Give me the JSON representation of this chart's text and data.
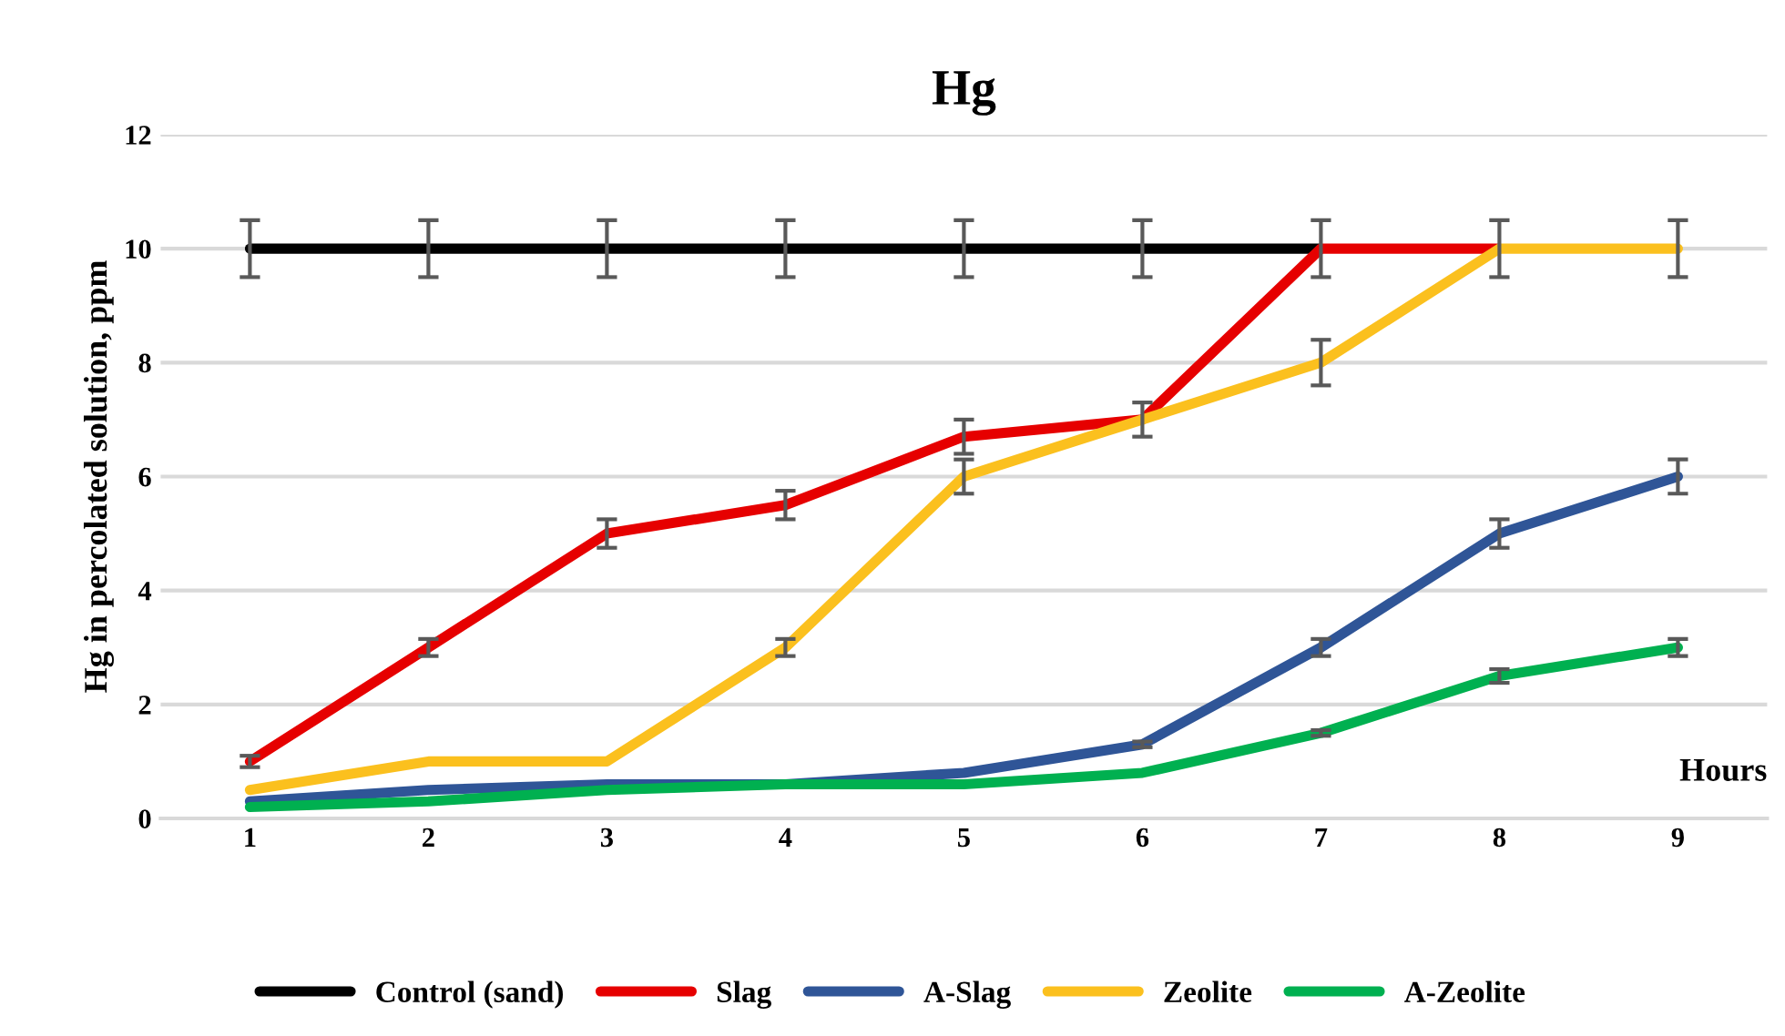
{
  "chart_data": {
    "type": "line",
    "title": "Hg",
    "xlabel": "Hours",
    "ylabel": "Hg in percolated solution, ppm",
    "categories": [
      "1",
      "2",
      "3",
      "4",
      "5",
      "6",
      "7",
      "8",
      "9"
    ],
    "series": [
      {
        "name": "Control (sand)",
        "color": "#000000",
        "values": [
          10,
          10,
          10,
          10,
          10,
          10,
          10,
          null,
          null
        ],
        "errors": [
          0.5,
          0.5,
          0.5,
          0.5,
          0.5,
          0.5,
          0.5,
          null,
          null
        ]
      },
      {
        "name": "Slag",
        "color": "#e60000",
        "values": [
          1,
          3,
          5,
          5.5,
          6.7,
          7,
          10,
          10,
          null
        ],
        "errors": [
          0.1,
          0.15,
          0.25,
          0.25,
          0.3,
          0.3,
          null,
          null,
          null
        ]
      },
      {
        "name": "A-Slag",
        "color": "#2f5597",
        "values": [
          0.3,
          0.5,
          0.6,
          0.6,
          0.8,
          1.3,
          3,
          5,
          6
        ],
        "errors": [
          null,
          null,
          null,
          null,
          null,
          0.05,
          0.15,
          0.25,
          0.3
        ]
      },
      {
        "name": "Zeolite",
        "color": "#fbc01e",
        "values": [
          0.5,
          1,
          1,
          3,
          6,
          7,
          8,
          10,
          10
        ],
        "errors": [
          null,
          null,
          null,
          0.15,
          0.3,
          null,
          0.4,
          0.5,
          0.5
        ]
      },
      {
        "name": "A-Zeolite",
        "color": "#00b050",
        "values": [
          0.2,
          0.3,
          0.5,
          0.6,
          0.6,
          0.8,
          1.5,
          2.5,
          3
        ],
        "errors": [
          null,
          null,
          null,
          null,
          null,
          null,
          0.05,
          0.12,
          0.15
        ]
      }
    ],
    "ylim": [
      0,
      12
    ],
    "yticks": [
      0,
      2,
      4,
      6,
      8,
      10,
      12
    ],
    "grid": "y",
    "legend": "bottom",
    "marker": "none",
    "line_style": "solid"
  }
}
